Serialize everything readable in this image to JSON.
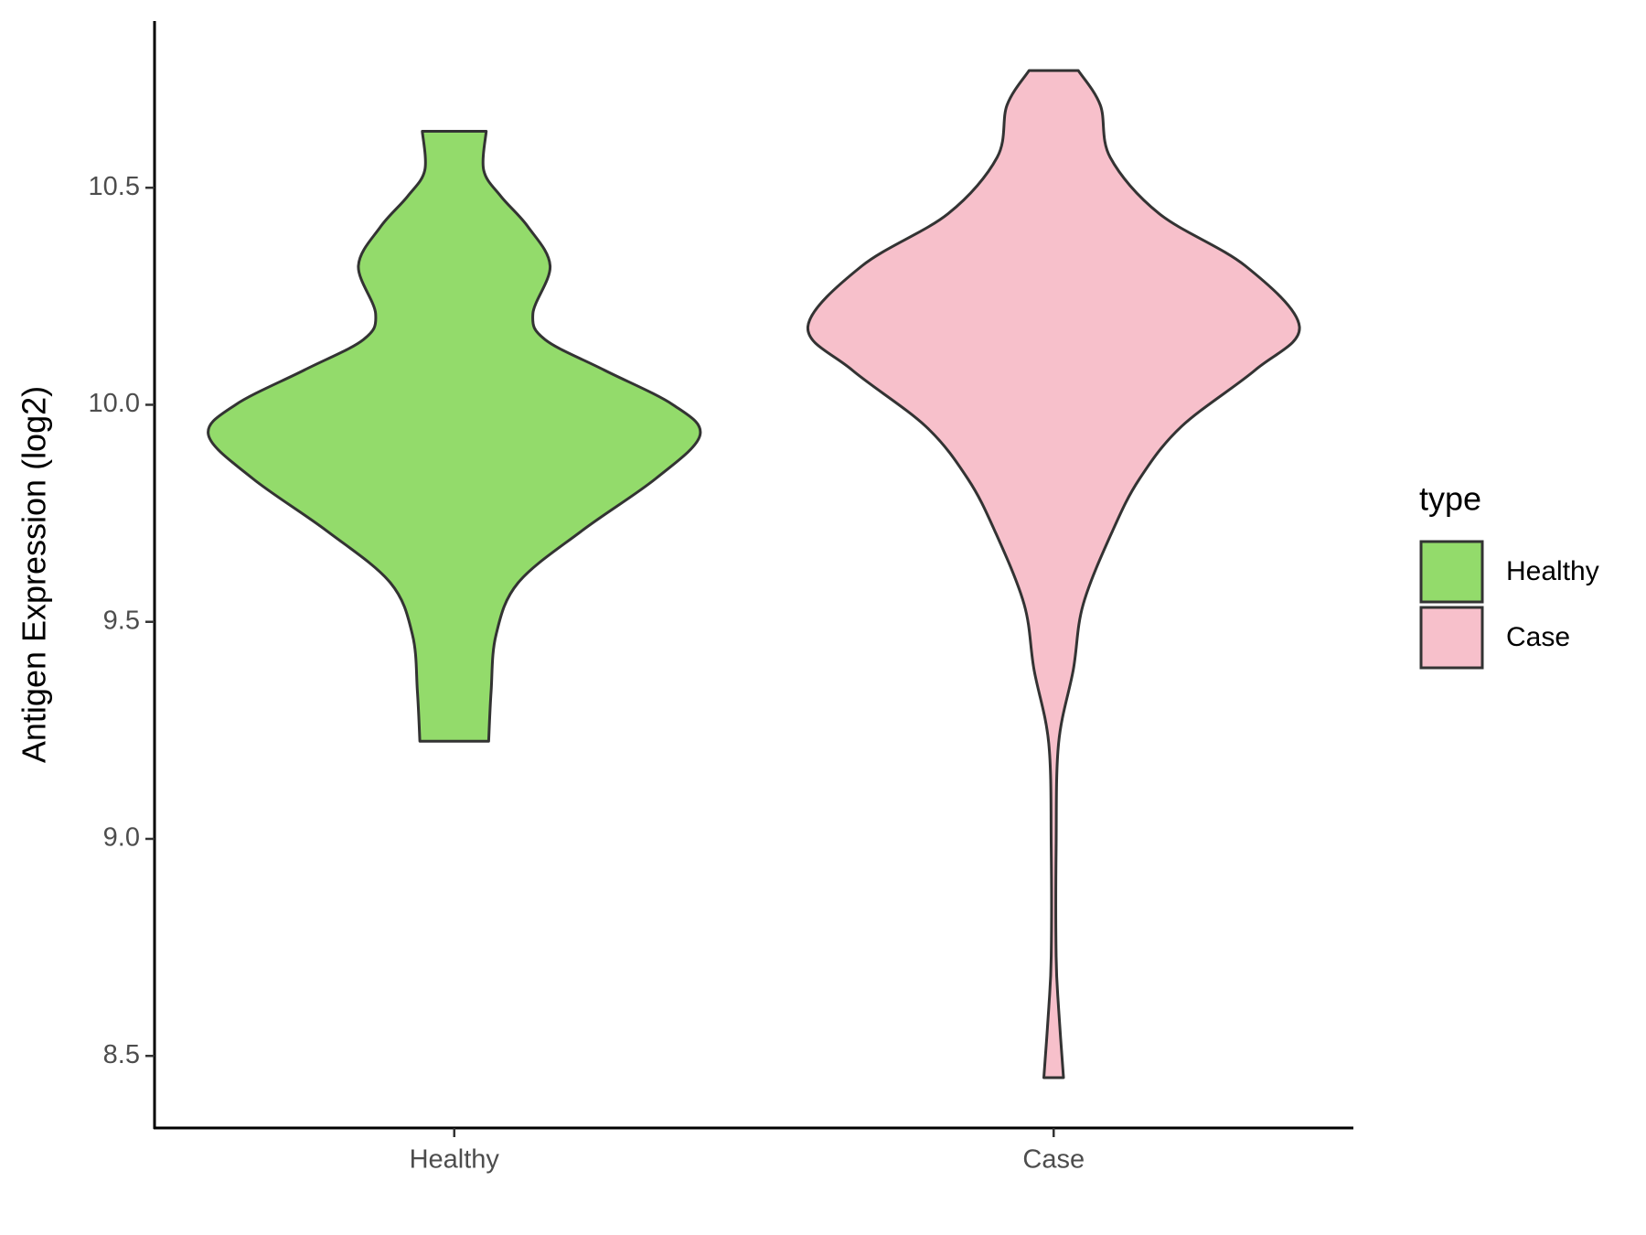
{
  "chart_data": {
    "type": "violin",
    "y_label": "Antigen Expression (log2)",
    "legend_title": "type",
    "legend_position": "right",
    "categories": [
      "Healthy",
      "Case"
    ],
    "series": [
      {
        "name": "Healthy",
        "color": "#93db6b",
        "y": [
          10.63,
          10.54,
          10.48,
          10.41,
          10.32,
          10.21,
          10.15,
          10.08,
          10.0,
          9.93,
          9.83,
          9.71,
          9.59,
          9.47,
          9.34,
          9.225
        ],
        "width": [
          0.13,
          0.12,
          0.19,
          0.3,
          0.39,
          0.32,
          0.37,
          0.61,
          0.89,
          1.0,
          0.82,
          0.52,
          0.26,
          0.17,
          0.15,
          0.14
        ]
      },
      {
        "name": "Case",
        "color": "#f7c0cb",
        "y": [
          10.77,
          10.69,
          10.57,
          10.44,
          10.32,
          10.18,
          10.08,
          9.95,
          9.83,
          9.71,
          9.54,
          9.39,
          9.22,
          8.98,
          8.73,
          8.61,
          8.45
        ],
        "width": [
          0.1,
          0.19,
          0.23,
          0.43,
          0.78,
          1.0,
          0.82,
          0.52,
          0.35,
          0.24,
          0.12,
          0.08,
          0.02,
          0.01,
          0.01,
          0.02,
          0.04
        ]
      }
    ],
    "ylim": [
      8.334,
      10.884
    ],
    "yticks": [
      {
        "value": 8.5,
        "label": "8.5"
      },
      {
        "value": 9.0,
        "label": "9.0"
      },
      {
        "value": 9.5,
        "label": "9.5"
      },
      {
        "value": 10.0,
        "label": "10.0"
      },
      {
        "value": 10.5,
        "label": "10.5"
      }
    ]
  }
}
